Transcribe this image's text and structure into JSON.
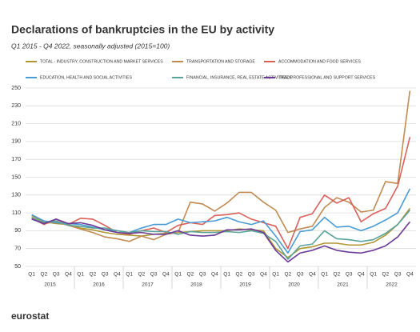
{
  "chart_data": {
    "type": "line",
    "title": "Declarations of bankruptcies in the EU by activity",
    "subtitle": "Q1 2015 - Q4 2022, seasonally adjusted  (2015=100)",
    "categories": [
      "Q1",
      "Q2",
      "Q3",
      "Q4",
      "Q1",
      "Q2",
      "Q3",
      "Q4",
      "Q1",
      "Q2",
      "Q3",
      "Q4",
      "Q1",
      "Q2",
      "Q3",
      "Q4",
      "Q1",
      "Q2",
      "Q3",
      "Q4",
      "Q1",
      "Q2",
      "Q3",
      "Q4",
      "Q1",
      "Q2",
      "Q3",
      "Q4",
      "Q1",
      "Q2",
      "Q3",
      "Q4"
    ],
    "years": [
      "2015",
      "2016",
      "2017",
      "2018",
      "2019",
      "2020",
      "2021",
      "2022"
    ],
    "ylim": [
      50,
      250
    ],
    "yticks": [
      50,
      70,
      90,
      110,
      130,
      150,
      170,
      190,
      210,
      230,
      250
    ],
    "grid": true,
    "series": [
      {
        "name": "TOTAL - INDUSTRY, CONSTRUCTION AND MARKET SERVICES",
        "color": "#b09534",
        "values": [
          107,
          100,
          98,
          97,
          93,
          91,
          88,
          86,
          85,
          84,
          86,
          87,
          88,
          89,
          90,
          90,
          90,
          92,
          91,
          90,
          70,
          60,
          70,
          72,
          76,
          76,
          74,
          74,
          77,
          85,
          97,
          115
        ]
      },
      {
        "name": "TRANSPORTATION AND STORAGE",
        "color": "#c08a52",
        "values": [
          105,
          98,
          100,
          96,
          92,
          88,
          83,
          81,
          78,
          84,
          80,
          86,
          88,
          122,
          120,
          112,
          121,
          133,
          133,
          122,
          113,
          88,
          92,
          95,
          116,
          127,
          122,
          111,
          113,
          145,
          143,
          247
        ]
      },
      {
        "name": "ACCOMMODATION AND FOOD SERVICES",
        "color": "#d9605a",
        "values": [
          104,
          97,
          103,
          97,
          104,
          103,
          96,
          88,
          86,
          90,
          93,
          88,
          96,
          99,
          97,
          107,
          108,
          110,
          103,
          99,
          95,
          70,
          105,
          109,
          130,
          121,
          127,
          100,
          109,
          115,
          140,
          195
        ]
      },
      {
        "name": "EDUCATION,  HEALTH AND SOCIAL ACTIVITIES",
        "color": "#4a9bd4",
        "values": [
          108,
          101,
          99,
          98,
          97,
          94,
          91,
          90,
          88,
          93,
          97,
          97,
          103,
          99,
          100,
          101,
          105,
          100,
          97,
          101,
          84,
          65,
          89,
          91,
          105,
          94,
          95,
          90,
          95,
          102,
          110,
          137
        ]
      },
      {
        "name": "FINANCIAL, INSURANCE, REAL ESTATE ACTIVITIES; PROFESSIONAL AND SUPPORT SERVICES",
        "color": "#5aa39a",
        "values": [
          105,
          99,
          101,
          96,
          95,
          93,
          93,
          90,
          88,
          90,
          89,
          89,
          86,
          89,
          88,
          88,
          89,
          88,
          90,
          87,
          78,
          58,
          73,
          75,
          90,
          81,
          80,
          78,
          80,
          87,
          97,
          113
        ]
      },
      {
        "name": "TRADE",
        "color": "#6b3a96",
        "values": [
          103,
          98,
          103,
          98,
          99,
          96,
          91,
          88,
          87,
          88,
          86,
          86,
          90,
          85,
          84,
          85,
          91,
          91,
          92,
          88,
          68,
          55,
          65,
          68,
          73,
          68,
          66,
          65,
          68,
          73,
          83,
          100
        ]
      }
    ],
    "source": "eurostat"
  }
}
